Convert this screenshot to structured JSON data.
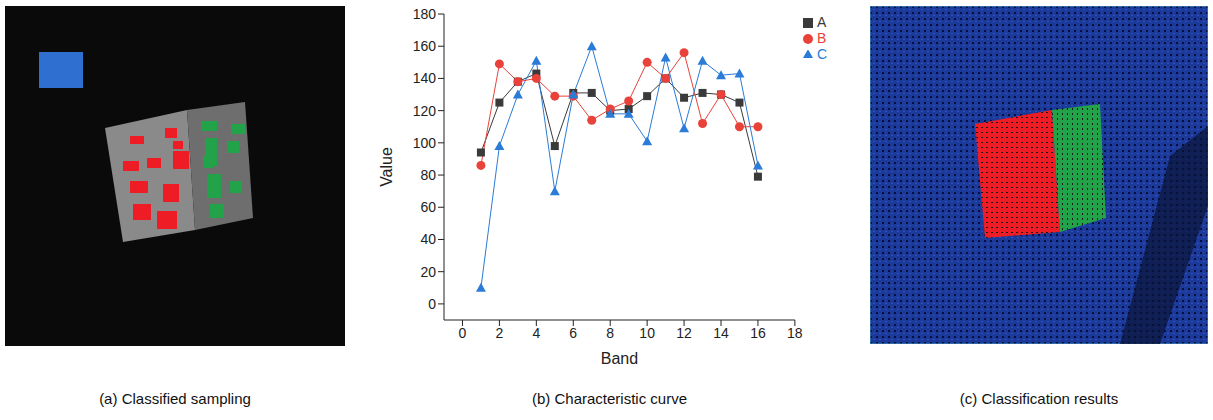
{
  "panels": [
    {
      "caption": "(a) Classified sampling"
    },
    {
      "caption": "(b) Characteristic curve"
    },
    {
      "caption": "(c) Classification results"
    }
  ],
  "chart_data": {
    "type": "line",
    "x_label": "Band",
    "y_label": "Value",
    "x": [
      1,
      2,
      3,
      4,
      5,
      6,
      7,
      8,
      9,
      10,
      11,
      12,
      13,
      14,
      15,
      16
    ],
    "xlim": [
      -1,
      18
    ],
    "xticks": [
      0,
      2,
      4,
      6,
      8,
      10,
      12,
      14,
      16,
      18
    ],
    "ylim": [
      -10,
      180
    ],
    "yticks": [
      0,
      20,
      40,
      60,
      80,
      100,
      120,
      140,
      160,
      180
    ],
    "grid": false,
    "legend": "right",
    "series": [
      {
        "name": "A",
        "color": "#3a3a3a",
        "marker": "square",
        "values": [
          94,
          125,
          138,
          143,
          98,
          131,
          131,
          120,
          121,
          129,
          140,
          128,
          131,
          130,
          125,
          79
        ]
      },
      {
        "name": "B",
        "color": "#e8423a",
        "marker": "circle",
        "values": [
          86,
          149,
          138,
          140,
          129,
          129,
          114,
          121,
          126,
          150,
          140,
          156,
          112,
          130,
          110,
          110
        ]
      },
      {
        "name": "C",
        "color": "#2b7bd8",
        "marker": "triangle",
        "values": [
          10,
          98,
          130,
          151,
          70,
          130,
          160,
          118,
          118,
          101,
          153,
          109,
          151,
          142,
          143,
          86
        ]
      }
    ]
  }
}
